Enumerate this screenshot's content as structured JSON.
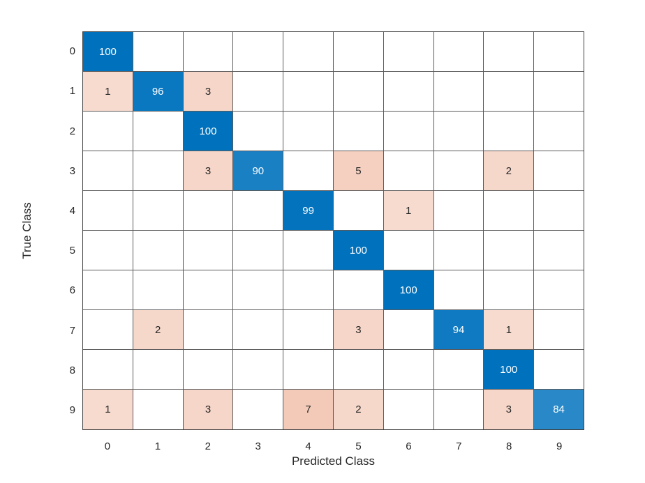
{
  "figure": {
    "xlabel": "Predicted Class",
    "ylabel": "True Class"
  },
  "chart_data": {
    "type": "heatmap",
    "subtype": "confusion-matrix",
    "title": "",
    "xlabel": "Predicted Class",
    "ylabel": "True Class",
    "x_categories": [
      "0",
      "1",
      "2",
      "3",
      "4",
      "5",
      "6",
      "7",
      "8",
      "9"
    ],
    "y_categories": [
      "0",
      "1",
      "2",
      "3",
      "4",
      "5",
      "6",
      "7",
      "8",
      "9"
    ],
    "matrix": [
      [
        100,
        0,
        0,
        0,
        0,
        0,
        0,
        0,
        0,
        0
      ],
      [
        1,
        96,
        3,
        0,
        0,
        0,
        0,
        0,
        0,
        0
      ],
      [
        0,
        0,
        100,
        0,
        0,
        0,
        0,
        0,
        0,
        0
      ],
      [
        0,
        0,
        3,
        90,
        0,
        5,
        0,
        0,
        2,
        0
      ],
      [
        0,
        0,
        0,
        0,
        99,
        0,
        1,
        0,
        0,
        0
      ],
      [
        0,
        0,
        0,
        0,
        0,
        100,
        0,
        0,
        0,
        0
      ],
      [
        0,
        0,
        0,
        0,
        0,
        0,
        100,
        0,
        0,
        0
      ],
      [
        0,
        2,
        0,
        0,
        0,
        3,
        0,
        94,
        1,
        0
      ],
      [
        0,
        0,
        0,
        0,
        0,
        0,
        0,
        0,
        100,
        0
      ],
      [
        1,
        0,
        3,
        0,
        7,
        2,
        0,
        0,
        3,
        84
      ]
    ],
    "value_scale": [
      0,
      100
    ],
    "layout": {
      "grid_on": true,
      "zero_cells_blank": true
    },
    "colors": {
      "diagonal": "#0072BD",
      "off_diagonal": "#D95319",
      "empty_cell": "#FFFFFF",
      "grid_line": "#5A5A5A",
      "text_dark": "#262626",
      "text_light": "#FFFFFF",
      "background": "#FFFFFF"
    }
  }
}
